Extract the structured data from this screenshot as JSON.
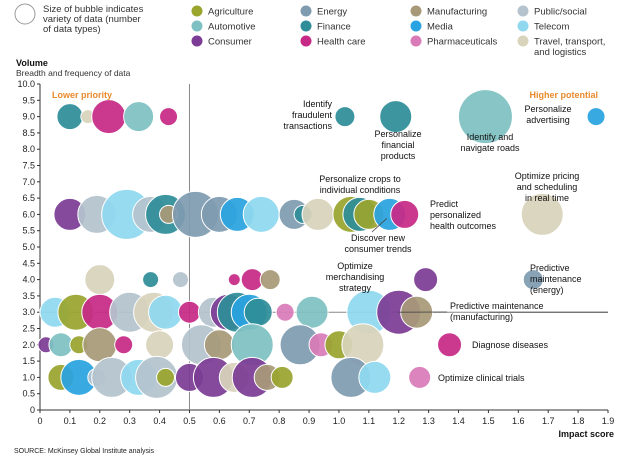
{
  "legend": {
    "size_note": [
      "Size of bubble indicates",
      "variety of data (number",
      "of data types)"
    ],
    "items": [
      {
        "label": "Agriculture",
        "color": "#9aa52e"
      },
      {
        "label": "Energy",
        "color": "#7f9bb0"
      },
      {
        "label": "Manufacturing",
        "color": "#a89a78"
      },
      {
        "label": "Public/social",
        "color": "#b4c3ce"
      },
      {
        "label": "Automotive",
        "color": "#7fc1c2"
      },
      {
        "label": "Finance",
        "color": "#2e8d98"
      },
      {
        "label": "Media",
        "color": "#2aa3e0"
      },
      {
        "label": "Telecom",
        "color": "#8fd8ef"
      },
      {
        "label": "Consumer",
        "color": "#7c3c95"
      },
      {
        "label": "Health care",
        "color": "#c72a86"
      },
      {
        "label": "Pharmaceuticals",
        "color": "#d97bb8"
      },
      {
        "label": "Travel, transport, and logistics",
        "color": "#d8d3bb"
      }
    ]
  },
  "chart_data": {
    "type": "scatter",
    "subtype": "bubble",
    "xlabel": "Impact score",
    "ylabel": "Volume",
    "ysublabel": "Breadth and frequency of data",
    "xlim": [
      0,
      1.9
    ],
    "ylim": [
      0,
      10
    ],
    "xticks": [
      "0",
      "0.1",
      "0.2",
      "0.3",
      "0.4",
      "0.5",
      "0.6",
      "0.7",
      "0.8",
      "0.9",
      "1.0",
      "1.1",
      "1.2",
      "1.3",
      "1.4",
      "1.5",
      "1.6",
      "1.7",
      "1.8",
      "1.9"
    ],
    "yticks": [
      "0",
      "0.5",
      "1.0",
      "1.5",
      "2.0",
      "2.5",
      "3.0",
      "3.5",
      "4.0",
      "4.5",
      "5.0",
      "5.5",
      "6.0",
      "6.5",
      "7.0",
      "7.5",
      "8.0",
      "8.5",
      "9.0",
      "9.5",
      "10.0"
    ],
    "quadrants": {
      "left_label": "Lower priority",
      "right_label": "Higher potential",
      "x_divider": 0.5,
      "y_divider": 3.0
    },
    "points": [
      {
        "x": 0.1,
        "y": 9.0,
        "r": 13,
        "sector": "Finance"
      },
      {
        "x": 0.16,
        "y": 9.0,
        "r": 7,
        "sector": "Travel, transport, and logistics"
      },
      {
        "x": 0.23,
        "y": 9.0,
        "r": 17,
        "sector": "Health care"
      },
      {
        "x": 0.33,
        "y": 9.0,
        "r": 15,
        "sector": "Automotive"
      },
      {
        "x": 0.43,
        "y": 9.0,
        "r": 9,
        "sector": "Health care"
      },
      {
        "x": 1.02,
        "y": 9.0,
        "r": 10,
        "sector": "Finance"
      },
      {
        "x": 1.19,
        "y": 9.0,
        "r": 16,
        "sector": "Finance"
      },
      {
        "x": 1.49,
        "y": 9.0,
        "r": 27,
        "sector": "Automotive"
      },
      {
        "x": 1.86,
        "y": 9.0,
        "r": 9,
        "sector": "Media"
      },
      {
        "x": 0.1,
        "y": 6.0,
        "r": 16,
        "sector": "Consumer"
      },
      {
        "x": 0.19,
        "y": 6.0,
        "r": 19,
        "sector": "Public/social"
      },
      {
        "x": 0.29,
        "y": 6.0,
        "r": 25,
        "sector": "Telecom"
      },
      {
        "x": 0.37,
        "y": 6.0,
        "r": 18,
        "sector": "Public/social"
      },
      {
        "x": 0.42,
        "y": 6.0,
        "r": 20,
        "sector": "Finance"
      },
      {
        "x": 0.43,
        "y": 6.0,
        "r": 9,
        "sector": "Manufacturing"
      },
      {
        "x": 0.52,
        "y": 6.0,
        "r": 23,
        "sector": "Energy"
      },
      {
        "x": 0.6,
        "y": 6.0,
        "r": 18,
        "sector": "Energy"
      },
      {
        "x": 0.66,
        "y": 6.0,
        "r": 17,
        "sector": "Media"
      },
      {
        "x": 0.74,
        "y": 6.0,
        "r": 18,
        "sector": "Telecom"
      },
      {
        "x": 0.85,
        "y": 6.0,
        "r": 15,
        "sector": "Energy"
      },
      {
        "x": 0.88,
        "y": 6.0,
        "r": 9,
        "sector": "Finance"
      },
      {
        "x": 0.93,
        "y": 6.0,
        "r": 16,
        "sector": "Travel, transport, and logistics"
      },
      {
        "x": 1.04,
        "y": 6.0,
        "r": 18,
        "sector": "Agriculture"
      },
      {
        "x": 1.07,
        "y": 6.0,
        "r": 17,
        "sector": "Finance"
      },
      {
        "x": 1.1,
        "y": 6.0,
        "r": 15,
        "sector": "Agriculture"
      },
      {
        "x": 1.17,
        "y": 6.0,
        "r": 16,
        "sector": "Media"
      },
      {
        "x": 1.22,
        "y": 6.0,
        "r": 14,
        "sector": "Health care"
      },
      {
        "x": 1.68,
        "y": 6.0,
        "r": 21,
        "sector": "Travel, transport, and logistics"
      },
      {
        "x": 0.2,
        "y": 4.0,
        "r": 15,
        "sector": "Travel, transport, and logistics"
      },
      {
        "x": 0.37,
        "y": 4.0,
        "r": 8,
        "sector": "Finance"
      },
      {
        "x": 0.47,
        "y": 4.0,
        "r": 8,
        "sector": "Public/social"
      },
      {
        "x": 0.65,
        "y": 4.0,
        "r": 6,
        "sector": "Health care"
      },
      {
        "x": 0.71,
        "y": 4.0,
        "r": 11,
        "sector": "Health care"
      },
      {
        "x": 0.77,
        "y": 4.0,
        "r": 10,
        "sector": "Manufacturing"
      },
      {
        "x": 1.29,
        "y": 4.0,
        "r": 12,
        "sector": "Consumer"
      },
      {
        "x": 1.65,
        "y": 4.0,
        "r": 10,
        "sector": "Energy"
      },
      {
        "x": 0.05,
        "y": 3.0,
        "r": 15,
        "sector": "Telecom"
      },
      {
        "x": 0.12,
        "y": 3.0,
        "r": 18,
        "sector": "Agriculture"
      },
      {
        "x": 0.2,
        "y": 3.0,
        "r": 18,
        "sector": "Health care"
      },
      {
        "x": 0.3,
        "y": 3.0,
        "r": 20,
        "sector": "Public/social"
      },
      {
        "x": 0.38,
        "y": 3.0,
        "r": 20,
        "sector": "Travel, transport, and logistics"
      },
      {
        "x": 0.42,
        "y": 3.0,
        "r": 17,
        "sector": "Telecom"
      },
      {
        "x": 0.5,
        "y": 3.0,
        "r": 11,
        "sector": "Health care"
      },
      {
        "x": 0.58,
        "y": 3.0,
        "r": 15,
        "sector": "Public/social"
      },
      {
        "x": 0.63,
        "y": 3.0,
        "r": 18,
        "sector": "Consumer"
      },
      {
        "x": 0.66,
        "y": 3.0,
        "r": 20,
        "sector": "Finance"
      },
      {
        "x": 0.7,
        "y": 3.0,
        "r": 18,
        "sector": "Media"
      },
      {
        "x": 0.73,
        "y": 3.0,
        "r": 14,
        "sector": "Finance"
      },
      {
        "x": 0.82,
        "y": 3.0,
        "r": 9,
        "sector": "Pharmaceuticals"
      },
      {
        "x": 0.91,
        "y": 3.0,
        "r": 16,
        "sector": "Automotive"
      },
      {
        "x": 1.1,
        "y": 3.0,
        "r": 22,
        "sector": "Telecom"
      },
      {
        "x": 1.2,
        "y": 3.0,
        "r": 22,
        "sector": "Consumer"
      },
      {
        "x": 1.26,
        "y": 3.0,
        "r": 16,
        "sector": "Manufacturing"
      },
      {
        "x": 0.02,
        "y": 2.0,
        "r": 8,
        "sector": "Consumer"
      },
      {
        "x": 0.07,
        "y": 2.0,
        "r": 12,
        "sector": "Automotive"
      },
      {
        "x": 0.13,
        "y": 2.0,
        "r": 9,
        "sector": "Agriculture"
      },
      {
        "x": 0.2,
        "y": 2.0,
        "r": 17,
        "sector": "Manufacturing"
      },
      {
        "x": 0.28,
        "y": 2.0,
        "r": 9,
        "sector": "Health care"
      },
      {
        "x": 0.4,
        "y": 2.0,
        "r": 14,
        "sector": "Travel, transport, and logistics"
      },
      {
        "x": 0.54,
        "y": 2.0,
        "r": 20,
        "sector": "Public/social"
      },
      {
        "x": 0.6,
        "y": 2.0,
        "r": 15,
        "sector": "Manufacturing"
      },
      {
        "x": 0.71,
        "y": 2.0,
        "r": 21,
        "sector": "Automotive"
      },
      {
        "x": 0.87,
        "y": 2.0,
        "r": 20,
        "sector": "Energy"
      },
      {
        "x": 0.94,
        "y": 2.0,
        "r": 12,
        "sector": "Pharmaceuticals"
      },
      {
        "x": 1.0,
        "y": 2.0,
        "r": 14,
        "sector": "Agriculture"
      },
      {
        "x": 1.08,
        "y": 2.0,
        "r": 21,
        "sector": "Travel, transport, and logistics"
      },
      {
        "x": 1.37,
        "y": 2.0,
        "r": 12,
        "sector": "Health care"
      },
      {
        "x": 0.07,
        "y": 1.0,
        "r": 13,
        "sector": "Agriculture"
      },
      {
        "x": 0.13,
        "y": 1.0,
        "r": 18,
        "sector": "Media"
      },
      {
        "x": 0.19,
        "y": 1.0,
        "r": 9,
        "sector": "Public/social"
      },
      {
        "x": 0.24,
        "y": 1.0,
        "r": 20,
        "sector": "Public/social"
      },
      {
        "x": 0.33,
        "y": 1.0,
        "r": 18,
        "sector": "Telecom"
      },
      {
        "x": 0.39,
        "y": 1.0,
        "r": 21,
        "sector": "Public/social"
      },
      {
        "x": 0.42,
        "y": 1.0,
        "r": 9,
        "sector": "Agriculture"
      },
      {
        "x": 0.5,
        "y": 1.0,
        "r": 14,
        "sector": "Consumer"
      },
      {
        "x": 0.58,
        "y": 1.0,
        "r": 20,
        "sector": "Consumer"
      },
      {
        "x": 0.65,
        "y": 1.0,
        "r": 15,
        "sector": "Travel, transport, and logistics"
      },
      {
        "x": 0.71,
        "y": 1.0,
        "r": 20,
        "sector": "Consumer"
      },
      {
        "x": 0.76,
        "y": 1.0,
        "r": 13,
        "sector": "Manufacturing"
      },
      {
        "x": 0.81,
        "y": 1.0,
        "r": 11,
        "sector": "Agriculture"
      },
      {
        "x": 1.04,
        "y": 1.0,
        "r": 20,
        "sector": "Energy"
      },
      {
        "x": 1.12,
        "y": 1.0,
        "r": 16,
        "sector": "Telecom"
      },
      {
        "x": 1.27,
        "y": 1.0,
        "r": 11,
        "sector": "Pharmaceuticals"
      }
    ],
    "annotations": [
      {
        "lines": [
          "Identify",
          "fraudulent",
          "transactions"
        ],
        "anchor": "end"
      },
      {
        "lines": [
          "Personalize",
          "financial",
          "products"
        ],
        "anchor": "middle"
      },
      {
        "lines": [
          "Identify and",
          "navigate roads"
        ],
        "anchor": "middle"
      },
      {
        "lines": [
          "Personalize",
          "advertising"
        ],
        "anchor": "middle"
      },
      {
        "lines": [
          "Personalize crops to",
          "individual conditions"
        ],
        "anchor": "middle"
      },
      {
        "lines": [
          "Predict",
          "personalized",
          "health outcomes"
        ],
        "anchor": "start"
      },
      {
        "lines": [
          "Discover new",
          "consumer trends"
        ],
        "anchor": "middle"
      },
      {
        "lines": [
          "Optimize pricing",
          "and scheduling",
          "in real time"
        ],
        "anchor": "middle"
      },
      {
        "lines": [
          "Optimize",
          "merchandising",
          "strategy"
        ],
        "anchor": "middle"
      },
      {
        "lines": [
          "Predictive",
          "maintenance",
          "(energy)"
        ],
        "anchor": "start"
      },
      {
        "lines": [
          "Predictive maintenance",
          "(manufacturing)"
        ],
        "anchor": "start"
      },
      {
        "lines": [
          "Diagnose diseases"
        ],
        "anchor": "start"
      },
      {
        "lines": [
          "Optimize clinical trials"
        ],
        "anchor": "start"
      }
    ],
    "source": "SOURCE: McKinsey Global Institute analysis"
  }
}
